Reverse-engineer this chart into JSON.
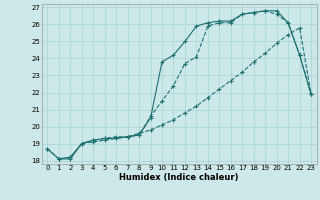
{
  "xlabel": "Humidex (Indice chaleur)",
  "bg_color": "#cce8e8",
  "grid_color": "#aad0d0",
  "line_color": "#1a7070",
  "xlim": [
    -0.5,
    23.5
  ],
  "ylim": [
    17.8,
    27.2
  ],
  "xticks": [
    0,
    1,
    2,
    3,
    4,
    5,
    6,
    7,
    8,
    9,
    10,
    11,
    12,
    13,
    14,
    15,
    16,
    17,
    18,
    19,
    20,
    21,
    22,
    23
  ],
  "yticks": [
    18,
    19,
    20,
    21,
    22,
    23,
    24,
    25,
    26,
    27
  ],
  "s1_x": [
    0,
    1,
    2,
    3,
    4,
    5,
    6,
    7,
    8,
    9,
    10,
    11,
    12,
    13,
    14,
    15,
    16,
    17,
    18,
    19,
    20,
    21,
    22,
    23
  ],
  "s1_y": [
    18.7,
    18.1,
    18.1,
    19.0,
    19.2,
    19.3,
    19.3,
    19.4,
    19.5,
    20.5,
    23.8,
    24.2,
    25.0,
    25.9,
    26.1,
    26.2,
    26.2,
    26.6,
    26.7,
    26.8,
    26.8,
    26.1,
    24.2,
    21.9
  ],
  "s2_x": [
    0,
    1,
    2,
    3,
    4,
    5,
    6,
    7,
    8,
    9,
    10,
    11,
    12,
    13,
    14,
    15,
    16,
    17,
    18,
    19,
    20,
    21,
    22,
    23
  ],
  "s2_y": [
    18.7,
    18.1,
    18.2,
    19.0,
    19.2,
    19.3,
    19.4,
    19.4,
    19.5,
    20.6,
    21.5,
    22.4,
    23.7,
    24.1,
    25.9,
    26.1,
    26.1,
    26.6,
    26.7,
    26.8,
    26.6,
    26.1,
    24.2,
    21.9
  ],
  "s3_x": [
    1,
    2,
    3,
    4,
    5,
    6,
    7,
    8,
    9,
    10,
    11,
    12,
    13,
    14,
    15,
    16,
    17,
    18,
    19,
    20,
    21,
    22,
    23
  ],
  "s3_y": [
    18.1,
    18.2,
    19.0,
    19.1,
    19.2,
    19.3,
    19.4,
    19.6,
    19.8,
    20.1,
    20.4,
    20.8,
    21.2,
    21.7,
    22.2,
    22.7,
    23.2,
    23.8,
    24.3,
    24.9,
    25.4,
    25.8,
    21.9
  ]
}
